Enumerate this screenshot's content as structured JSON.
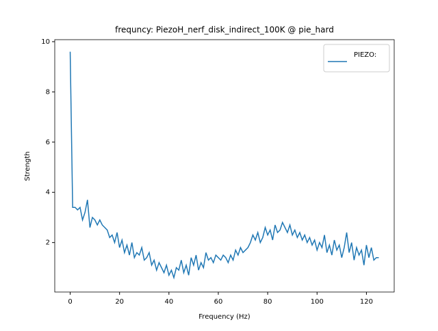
{
  "chart_data": {
    "type": "line",
    "title": "frequncy: PiezoH_nerf_disk_indirect_100K @ pie_hard",
    "x_label": "Frequency (Hz)",
    "y_label": "Strength",
    "x": [
      0,
      1,
      2,
      3,
      4,
      5,
      6,
      7,
      8,
      9,
      10,
      11,
      12,
      13,
      14,
      15,
      16,
      17,
      18,
      19,
      20,
      21,
      22,
      23,
      24,
      25,
      26,
      27,
      28,
      29,
      30,
      31,
      32,
      33,
      34,
      35,
      36,
      37,
      38,
      39,
      40,
      41,
      42,
      43,
      44,
      45,
      46,
      47,
      48,
      49,
      50,
      51,
      52,
      53,
      54,
      55,
      56,
      57,
      58,
      59,
      60,
      61,
      62,
      63,
      64,
      65,
      66,
      67,
      68,
      69,
      70,
      71,
      72,
      73,
      74,
      75,
      76,
      77,
      78,
      79,
      80,
      81,
      82,
      83,
      84,
      85,
      86,
      87,
      88,
      89,
      90,
      91,
      92,
      93,
      94,
      95,
      96,
      97,
      98,
      99,
      100,
      101,
      102,
      103,
      104,
      105,
      106,
      107,
      108,
      109,
      110,
      111,
      112,
      113,
      114,
      115,
      116,
      117,
      118,
      119,
      120,
      121,
      122,
      123,
      124,
      125
    ],
    "series": [
      {
        "name": "PIEZO:",
        "color": "#1f77b4",
        "values": [
          9.6,
          3.4,
          3.4,
          3.3,
          3.4,
          2.9,
          3.2,
          3.7,
          2.6,
          3.0,
          2.9,
          2.7,
          2.9,
          2.7,
          2.6,
          2.5,
          2.2,
          2.3,
          2.0,
          2.4,
          1.8,
          2.1,
          1.6,
          1.9,
          1.5,
          2.0,
          1.4,
          1.6,
          1.5,
          1.8,
          1.3,
          1.4,
          1.6,
          1.1,
          1.3,
          0.9,
          1.2,
          1.0,
          0.8,
          1.1,
          0.7,
          0.9,
          0.6,
          1.0,
          0.9,
          1.3,
          0.8,
          1.1,
          0.7,
          1.4,
          1.1,
          1.5,
          0.9,
          1.2,
          1.0,
          1.6,
          1.3,
          1.4,
          1.2,
          1.5,
          1.4,
          1.3,
          1.5,
          1.4,
          1.2,
          1.5,
          1.3,
          1.7,
          1.5,
          1.8,
          1.6,
          1.7,
          1.8,
          2.0,
          2.3,
          2.1,
          2.4,
          2.0,
          2.2,
          2.6,
          2.3,
          2.5,
          2.1,
          2.7,
          2.4,
          2.5,
          2.8,
          2.6,
          2.4,
          2.7,
          2.3,
          2.5,
          2.2,
          2.4,
          2.1,
          2.3,
          2.0,
          2.2,
          1.9,
          2.1,
          1.7,
          2.0,
          1.8,
          2.3,
          1.6,
          1.9,
          1.5,
          2.1,
          1.7,
          1.9,
          1.4,
          1.8,
          2.4,
          1.6,
          2.0,
          1.3,
          1.8,
          1.5,
          1.7,
          1.1,
          1.9,
          1.4,
          1.8,
          1.3,
          1.4,
          1.4
        ]
      }
    ],
    "xlim": [
      -6.25,
      131.25
    ],
    "ylim": [
      0.03,
      10.08
    ],
    "xticks": [
      0,
      20,
      40,
      60,
      80,
      100,
      120
    ],
    "yticks": [
      2,
      4,
      6,
      8,
      10
    ],
    "legend": "upper right"
  }
}
